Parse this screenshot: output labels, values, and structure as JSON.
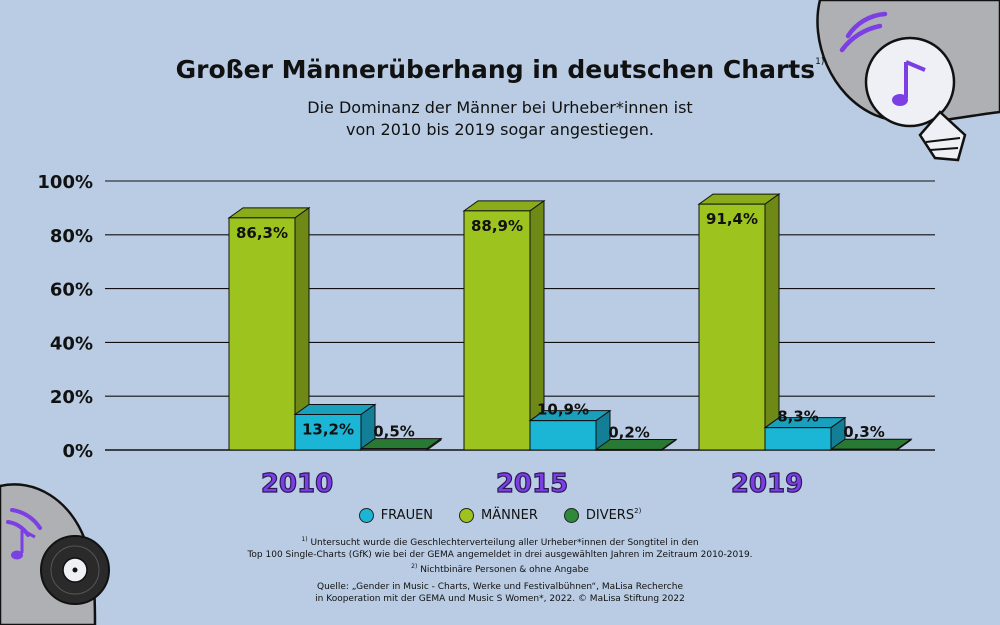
{
  "colors": {
    "background": "#b9cce3",
    "frauen": "#1bb6d6",
    "maenner": "#9dc41e",
    "divers": "#2e8a3a",
    "year": "#7b3fe4"
  },
  "chart_data": {
    "type": "bar",
    "title": "Großer Männerüberhang in deutschen Charts",
    "title_note": "1)",
    "subtitle_lines": [
      "Die Dominanz der Männer bei Urheber*innen ist",
      "von 2010 bis 2019 sogar angestiegen."
    ],
    "categories": [
      "2010",
      "2015",
      "2019"
    ],
    "series": [
      {
        "name": "FRAUEN",
        "values": [
          13.2,
          10.9,
          8.3
        ],
        "labels": [
          "13,2%",
          "10,9%",
          "8,3%"
        ]
      },
      {
        "name": "MÄNNER",
        "values": [
          86.3,
          88.9,
          91.4
        ],
        "labels": [
          "86,3%",
          "88,9%",
          "91,4%"
        ]
      },
      {
        "name": "DIVERS",
        "note": "2)",
        "values": [
          0.5,
          0.2,
          0.3
        ],
        "labels": [
          "0,5%",
          "0,2%",
          "0,3%"
        ]
      }
    ],
    "ylim": [
      0,
      100
    ],
    "yticks": [
      0,
      20,
      40,
      60,
      80,
      100
    ],
    "ytick_labels": [
      "0%",
      "20%",
      "40%",
      "60%",
      "80%",
      "100%"
    ],
    "xlabel": "",
    "ylabel": ""
  },
  "footnotes": {
    "note1_marker": "1)",
    "note1_line1": "Untersucht wurde die Geschlechterverteilung aller Urheber*innen der Songtitel in den",
    "note1_line2": "Top 100 Single-Charts (GfK) wie bei der GEMA angemeldet in drei ausgewählten Jahren im Zeitraum 2010-2019.",
    "note2_marker": "2)",
    "note2_text": "Nichtbinäre Personen & ohne Angabe",
    "source_line1": "Quelle: „Gender in Music - Charts, Werke und Festivalbühnen“, MaLisa Recherche",
    "source_line2": "in Kooperation mit der GEMA und Music S Women*, 2022. © MaLisa Stiftung 2022"
  }
}
